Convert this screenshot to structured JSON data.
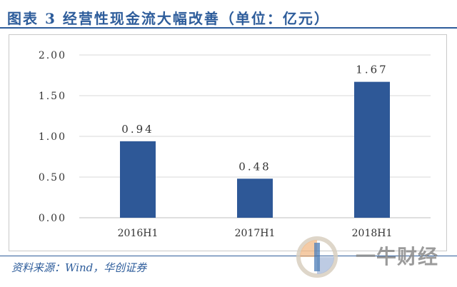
{
  "title": "图表 3   经营性现金流大幅改善（单位：亿元）",
  "source": "资料来源：Wind，华创证券",
  "watermark_text": "一牛财经",
  "colors": {
    "accent": "#2e5d9b",
    "bar": "#2e5897",
    "grid": "#d9d9d9",
    "axis_text": "#333333"
  },
  "chart_data": {
    "type": "bar",
    "categories": [
      "2016H1",
      "2017H1",
      "2018H1"
    ],
    "values": [
      0.94,
      0.48,
      1.67
    ],
    "value_labels": [
      "0.94",
      "0.48",
      "1.67"
    ],
    "yticks": [
      "0.00",
      "0.50",
      "1.00",
      "1.50",
      "2.00"
    ],
    "ylim": [
      0,
      2.0
    ],
    "grid": true,
    "legend": "none"
  }
}
